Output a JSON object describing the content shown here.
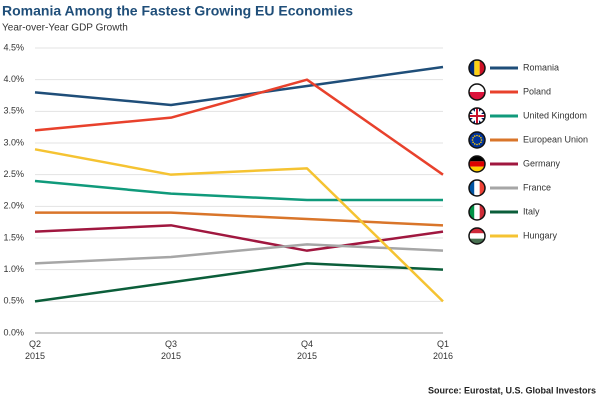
{
  "chart_data": {
    "type": "line",
    "title": "Romania Among the Fastest Growing EU Economies",
    "subtitle": "Year-over-Year GDP Growth",
    "source": "Source: Eurostat, U.S. Global Investors",
    "categories": [
      "Q2 2015",
      "Q3 2015",
      "Q4 2015",
      "Q1 2016"
    ],
    "ylim": [
      0,
      4.5
    ],
    "yticks": [
      {
        "value": 0,
        "label": "0.0%"
      },
      {
        "value": 0.5,
        "label": "0.5%"
      },
      {
        "value": 1,
        "label": "1.0%"
      },
      {
        "value": 1.5,
        "label": "1.5%"
      },
      {
        "value": 2,
        "label": "2.0%"
      },
      {
        "value": 2.5,
        "label": "2.5%"
      },
      {
        "value": 3,
        "label": "3.0%"
      },
      {
        "value": 3.5,
        "label": "3.5%"
      },
      {
        "value": 4,
        "label": "4.0%"
      },
      {
        "value": 4.5,
        "label": "4.5%"
      }
    ],
    "grid": true,
    "legend": "right",
    "series": [
      {
        "name": "Romania",
        "color": "#1f4e79",
        "values": [
          3.8,
          3.6,
          3.9,
          4.2
        ]
      },
      {
        "name": "Poland",
        "color": "#e8412c",
        "values": [
          3.2,
          3.4,
          4.0,
          2.5
        ]
      },
      {
        "name": "United Kingdom",
        "color": "#109a7b",
        "values": [
          2.4,
          2.2,
          2.1,
          2.1
        ]
      },
      {
        "name": "European Union",
        "color": "#d9752a",
        "values": [
          1.9,
          1.9,
          1.8,
          1.7
        ]
      },
      {
        "name": "Germany",
        "color": "#a0173f",
        "values": [
          1.6,
          1.7,
          1.3,
          1.6
        ]
      },
      {
        "name": "France",
        "color": "#a6a6a6",
        "values": [
          1.1,
          1.2,
          1.4,
          1.3
        ]
      },
      {
        "name": "Italy",
        "color": "#0b5e3a",
        "values": [
          0.5,
          0.8,
          1.1,
          1.0
        ]
      },
      {
        "name": "Hungary",
        "color": "#f5c332",
        "values": [
          2.9,
          2.5,
          2.6,
          0.5
        ]
      }
    ]
  }
}
